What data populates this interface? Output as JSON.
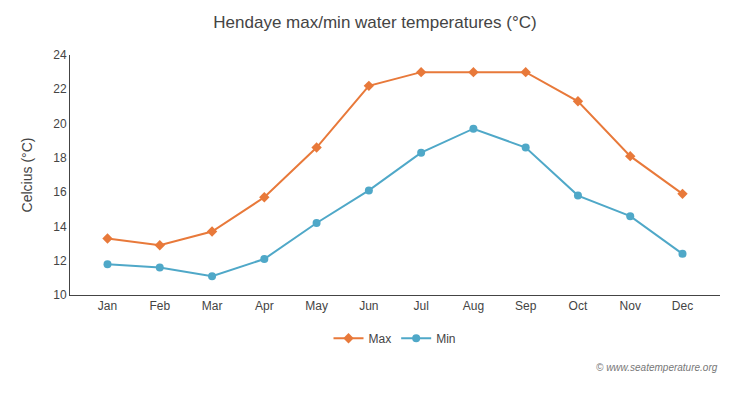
{
  "chart_data": {
    "type": "line",
    "title": "Hendaye max/min water temperatures (°C)",
    "y_label": "Celcius (°C)",
    "categories": [
      "Jan",
      "Feb",
      "Mar",
      "Apr",
      "May",
      "Jun",
      "Jul",
      "Aug",
      "Sep",
      "Oct",
      "Nov",
      "Dec"
    ],
    "series": [
      {
        "name": "Max",
        "color": "#e8793a",
        "marker": "diamond",
        "values": [
          13.3,
          12.9,
          13.7,
          15.7,
          18.6,
          22.2,
          23.0,
          23.0,
          23.0,
          21.3,
          18.1,
          15.9
        ]
      },
      {
        "name": "Min",
        "color": "#4fa8c8",
        "marker": "circle",
        "values": [
          11.8,
          11.6,
          11.1,
          12.1,
          14.2,
          16.1,
          18.3,
          19.7,
          18.6,
          15.8,
          14.6,
          12.4
        ]
      }
    ],
    "ylim": [
      10,
      24
    ],
    "yticks": [
      10,
      12,
      14,
      16,
      18,
      20,
      22,
      24
    ],
    "grid": false,
    "legend": "bottom",
    "annotations": [
      "© www.seatemperature.org"
    ]
  }
}
